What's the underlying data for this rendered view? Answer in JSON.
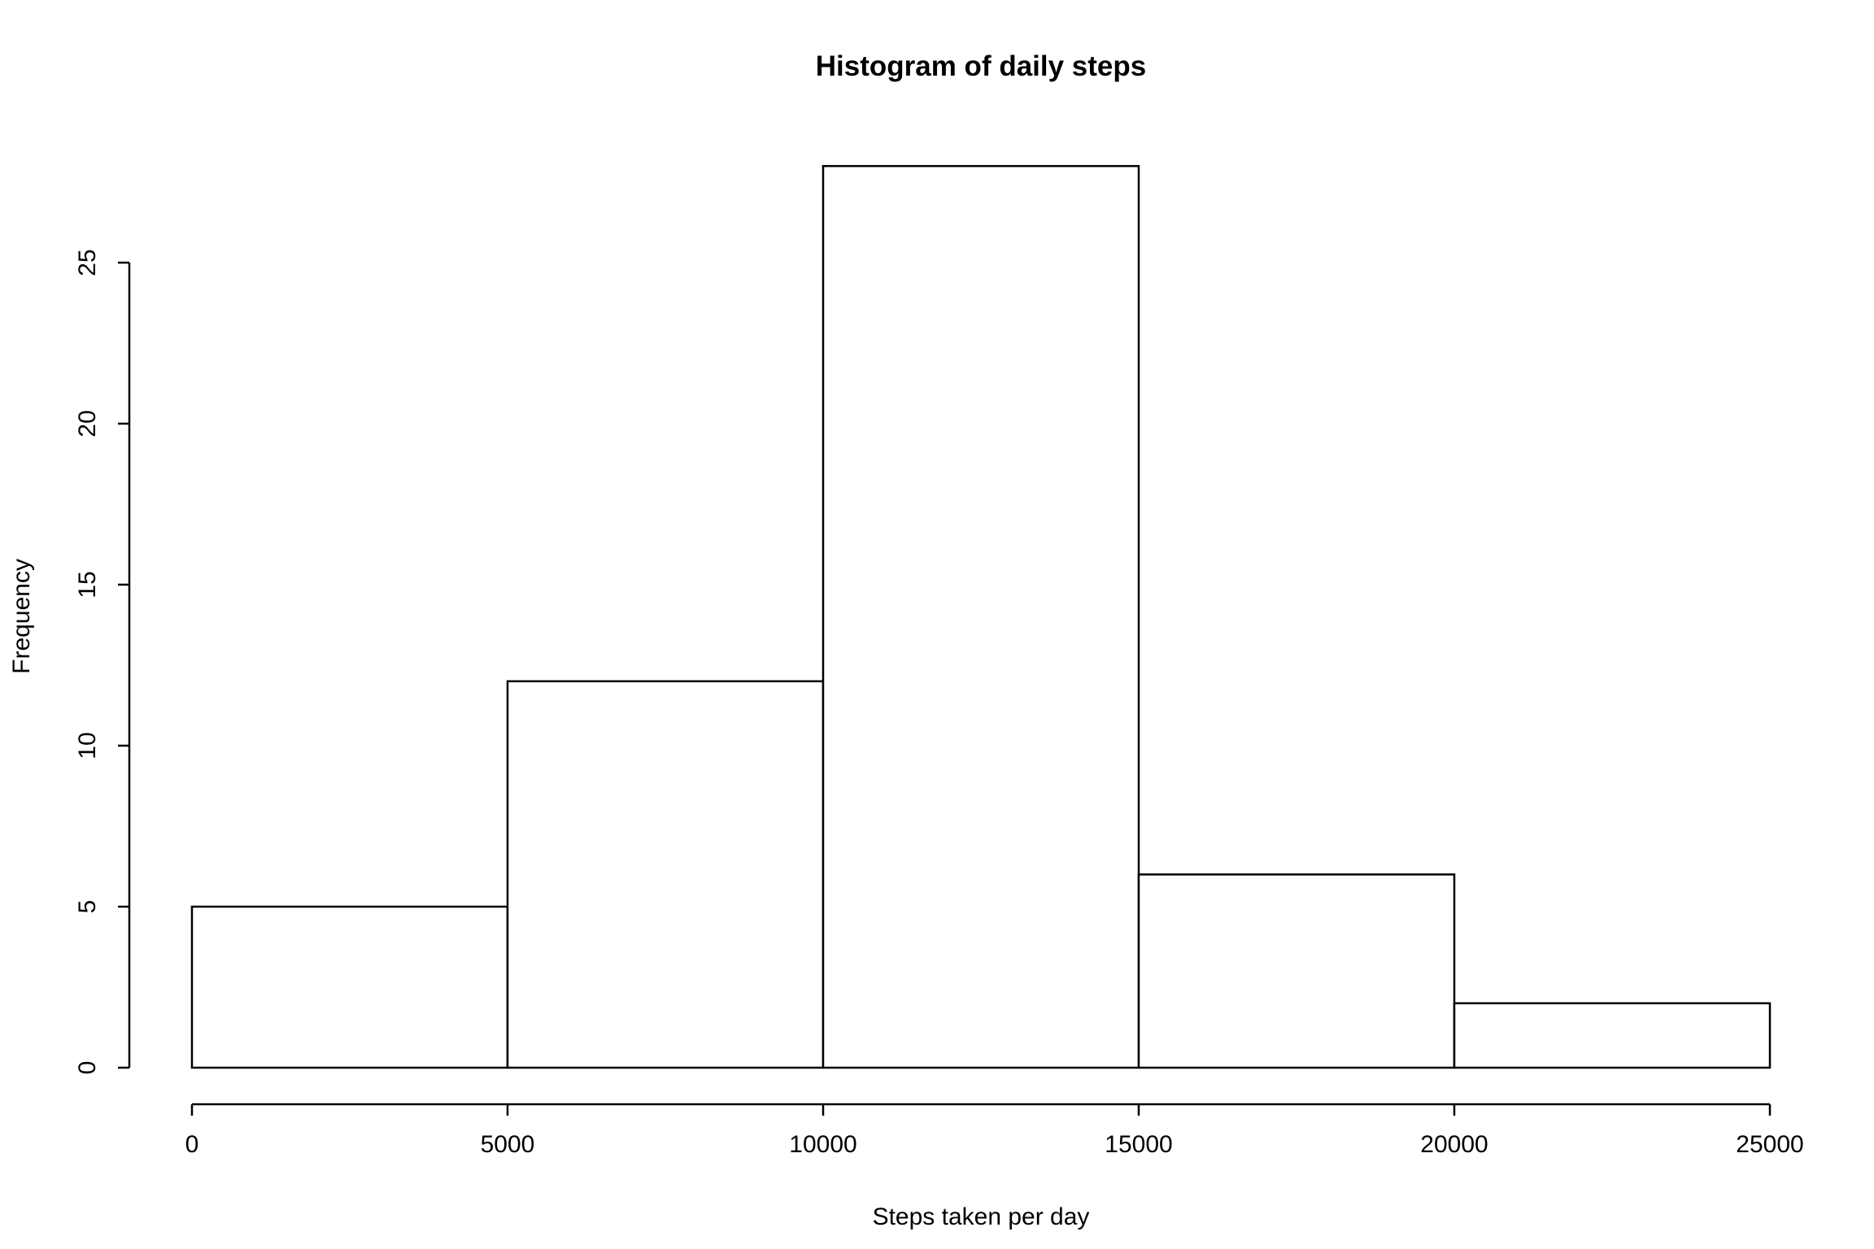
{
  "chart_data": {
    "type": "bar",
    "title": "Histogram of daily steps",
    "xlabel": "Steps taken per day",
    "ylabel": "Frequency",
    "bins": [
      {
        "from": 0,
        "to": 5000,
        "count": 5
      },
      {
        "from": 5000,
        "to": 10000,
        "count": 12
      },
      {
        "from": 10000,
        "to": 15000,
        "count": 28
      },
      {
        "from": 15000,
        "to": 20000,
        "count": 6
      },
      {
        "from": 20000,
        "to": 25000,
        "count": 2
      }
    ],
    "xlim": [
      0,
      25000
    ],
    "ylim": [
      0,
      28
    ],
    "x_ticks": [
      "0",
      "5000",
      "10000",
      "15000",
      "20000",
      "25000"
    ],
    "y_ticks": [
      "0",
      "5",
      "10",
      "15",
      "20",
      "25"
    ],
    "grid": false,
    "bar_fill": "#ffffff",
    "bar_stroke": "#000000"
  }
}
